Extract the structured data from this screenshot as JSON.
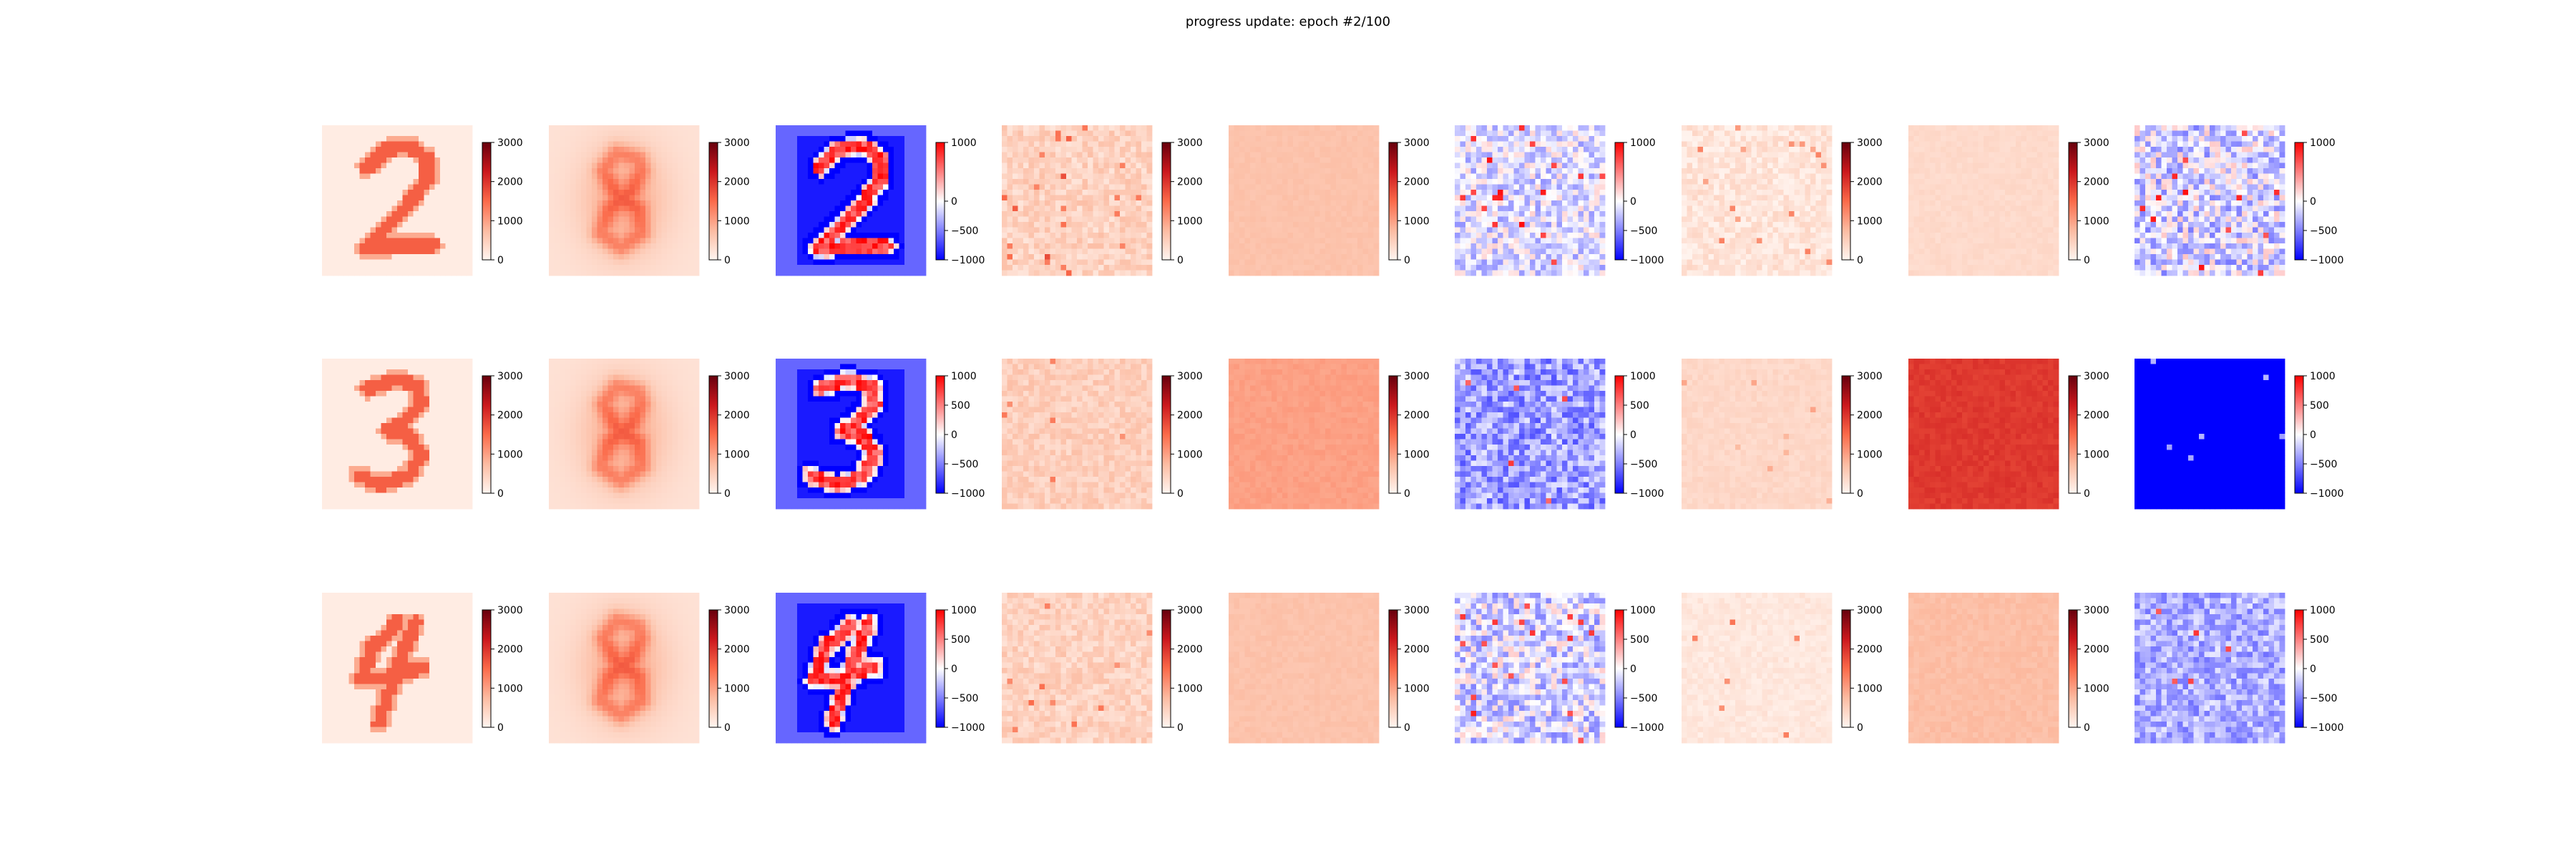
{
  "figure": {
    "title": "progress update: epoch #2/100"
  },
  "colormaps": {
    "reds": [
      "#fff5f0",
      "#fcbba1",
      "#fb6a4a",
      "#cb181d",
      "#67000d"
    ],
    "bwr": [
      "#0000ff",
      "#ffffff",
      "#ff0000"
    ]
  },
  "chart_data": {
    "type": "heatmap",
    "title": "progress update: epoch #2/100",
    "grid_rows": 3,
    "grid_cols": 9,
    "image_resolution": [
      28,
      28
    ],
    "colorbars": {
      "reds": {
        "vmin": 0,
        "vmax": 3000,
        "ticks": [
          0,
          1000,
          2000,
          3000
        ],
        "tick_labels": [
          "0",
          "1000",
          "2000",
          "3000"
        ]
      },
      "bwr": {
        "vmin": -1000,
        "vmax": 1000,
        "ticks": [
          -1000,
          -500,
          0,
          500,
          1000
        ],
        "tick_labels": [
          "−1000",
          "−500",
          "0",
          "500",
          "1000"
        ]
      },
      "bwr_row1": {
        "vmin": -1000,
        "vmax": 1000,
        "ticks": [
          -1000,
          -500,
          0,
          1000
        ],
        "tick_labels": [
          "−1000",
          "−500",
          "0",
          "1000"
        ]
      }
    },
    "rows": [
      {
        "digit": "2",
        "panels": [
          {
            "kind": "digit",
            "cmap": "reds",
            "colorbar": "reds"
          },
          {
            "kind": "mean",
            "cmap": "reds",
            "colorbar": "reds"
          },
          {
            "kind": "signed-digit",
            "cmap": "bwr",
            "colorbar": "bwr_row1"
          },
          {
            "kind": "noise",
            "cmap": "reds",
            "colorbar": "reds",
            "base": 450,
            "spread": 250,
            "spikes": 22,
            "spike_value": 1800
          },
          {
            "kind": "noise",
            "cmap": "reds",
            "colorbar": "reds",
            "base": 650,
            "spread": 50,
            "spikes": 0,
            "spike_value": 0
          },
          {
            "kind": "noise",
            "cmap": "bwr",
            "colorbar": "bwr_row1",
            "base": -120,
            "spread": 300,
            "spikes": 18,
            "spike_value": 950
          },
          {
            "kind": "noise",
            "cmap": "reds",
            "colorbar": "reds",
            "base": 220,
            "spread": 200,
            "spikes": 16,
            "spike_value": 1300
          },
          {
            "kind": "noise",
            "cmap": "reds",
            "colorbar": "reds",
            "base": 350,
            "spread": 60,
            "spikes": 0,
            "spike_value": 0
          },
          {
            "kind": "noise",
            "cmap": "bwr",
            "colorbar": "bwr_row1",
            "base": -150,
            "spread": 380,
            "spikes": 14,
            "spike_value": 950
          }
        ]
      },
      {
        "digit": "3",
        "panels": [
          {
            "kind": "digit",
            "cmap": "reds",
            "colorbar": "reds"
          },
          {
            "kind": "mean",
            "cmap": "reds",
            "colorbar": "reds"
          },
          {
            "kind": "signed-digit",
            "cmap": "bwr",
            "colorbar": "bwr"
          },
          {
            "kind": "noise",
            "cmap": "reds",
            "colorbar": "reds",
            "base": 500,
            "spread": 200,
            "spikes": 6,
            "spike_value": 1400
          },
          {
            "kind": "noise",
            "cmap": "reds",
            "colorbar": "reds",
            "base": 1000,
            "spread": 70,
            "spikes": 0,
            "spike_value": 0
          },
          {
            "kind": "noise",
            "cmap": "bwr",
            "colorbar": "bwr",
            "base": -380,
            "spread": 300,
            "spikes": 5,
            "spike_value": 800
          },
          {
            "kind": "noise",
            "cmap": "reds",
            "colorbar": "reds",
            "base": 380,
            "spread": 80,
            "spikes": 8,
            "spike_value": 1000
          },
          {
            "kind": "noise",
            "cmap": "reds",
            "colorbar": "reds",
            "base": 1950,
            "spread": 90,
            "spikes": 0,
            "spike_value": 0
          },
          {
            "kind": "noise",
            "cmap": "bwr",
            "colorbar": "bwr",
            "base": -1000,
            "spread": 0,
            "spikes": 6,
            "spike_value": -400
          }
        ]
      },
      {
        "digit": "4",
        "panels": [
          {
            "kind": "digit",
            "cmap": "reds",
            "colorbar": "reds"
          },
          {
            "kind": "mean",
            "cmap": "reds",
            "colorbar": "reds"
          },
          {
            "kind": "signed-digit",
            "cmap": "bwr",
            "colorbar": "bwr"
          },
          {
            "kind": "noise",
            "cmap": "reds",
            "colorbar": "reds",
            "base": 450,
            "spread": 230,
            "spikes": 10,
            "spike_value": 1500
          },
          {
            "kind": "noise",
            "cmap": "reds",
            "colorbar": "reds",
            "base": 650,
            "spread": 60,
            "spikes": 0,
            "spike_value": 0
          },
          {
            "kind": "noise",
            "cmap": "bwr",
            "colorbar": "bwr",
            "base": -150,
            "spread": 350,
            "spikes": 18,
            "spike_value": 900
          },
          {
            "kind": "noise",
            "cmap": "reds",
            "colorbar": "reds",
            "base": 180,
            "spread": 100,
            "spikes": 6,
            "spike_value": 1400
          },
          {
            "kind": "noise",
            "cmap": "reds",
            "colorbar": "reds",
            "base": 700,
            "spread": 80,
            "spikes": 0,
            "spike_value": 0
          },
          {
            "kind": "noise",
            "cmap": "bwr",
            "colorbar": "bwr",
            "base": -320,
            "spread": 240,
            "spikes": 5,
            "spike_value": 800
          }
        ]
      }
    ]
  }
}
